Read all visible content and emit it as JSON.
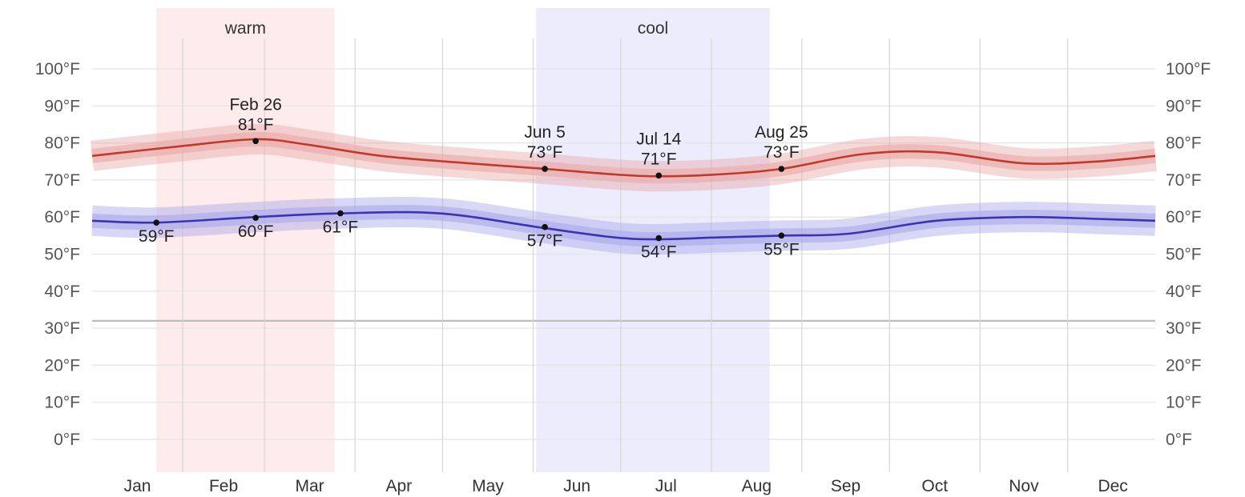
{
  "chart_data": {
    "type": "line",
    "title": "",
    "xlabel": "",
    "ylabel": "",
    "ylim": [
      -8,
      107
    ],
    "y_ticks": [
      "0°F",
      "10°F",
      "20°F",
      "30°F",
      "40°F",
      "50°F",
      "60°F",
      "70°F",
      "80°F",
      "90°F",
      "100°F"
    ],
    "y_tick_values": [
      0,
      10,
      20,
      30,
      40,
      50,
      60,
      70,
      80,
      90,
      100
    ],
    "freezing_line": 32,
    "months": [
      "Jan",
      "Feb",
      "Mar",
      "Apr",
      "May",
      "Jun",
      "Jul",
      "Aug",
      "Sep",
      "Oct",
      "Nov",
      "Dec"
    ],
    "x_unit": "day of year",
    "xlim": [
      1,
      365
    ],
    "seasons": [
      {
        "label": "warm",
        "start_day": 23,
        "end_day": 84,
        "color": "#fde4e4"
      },
      {
        "label": "cool",
        "start_day": 153,
        "end_day": 233,
        "color": "#e6e6fc"
      }
    ],
    "series": [
      {
        "color": "#c0392b",
        "band_color": "#e9a9a9",
        "x": [
          1,
          30,
          57,
          75,
          100,
          130,
          156,
          180,
          195,
          215,
          237,
          265,
          290,
          320,
          345,
          365
        ],
        "y": [
          76.5,
          79,
          81,
          79.5,
          76.5,
          74.5,
          73,
          71.5,
          71,
          71.5,
          73,
          77,
          77.5,
          74.5,
          75,
          76.5
        ]
      },
      {
        "color": "#3a34b5",
        "band_color": "#a9a9ea",
        "x": [
          1,
          23,
          57,
          86,
          120,
          156,
          180,
          195,
          215,
          237,
          260,
          290,
          320,
          345,
          365
        ],
        "y": [
          59,
          58.5,
          60,
          61,
          61,
          57,
          54.5,
          54,
          54.5,
          55,
          55.5,
          59,
          60,
          59.5,
          59
        ]
      }
    ],
    "annotations": [
      {
        "date": "Feb 26",
        "value": "81°F",
        "day": 57,
        "temp": 80.5,
        "position": "above"
      },
      {
        "date": "Jun 5",
        "value": "73°F",
        "day": 156,
        "temp": 73,
        "position": "above"
      },
      {
        "date": "Jul 14",
        "value": "71°F",
        "day": 195,
        "temp": 71.2,
        "position": "above"
      },
      {
        "date": "Aug 25",
        "value": "73°F",
        "day": 237,
        "temp": 73,
        "position": "above"
      },
      {
        "date": "",
        "value": "59°F",
        "day": 23,
        "temp": 58.5,
        "position": "below"
      },
      {
        "date": "",
        "value": "60°F",
        "day": 57,
        "temp": 59.8,
        "position": "below"
      },
      {
        "date": "",
        "value": "61°F",
        "day": 86,
        "temp": 61,
        "position": "below"
      },
      {
        "date": "",
        "value": "57°F",
        "day": 156,
        "temp": 57.3,
        "position": "below"
      },
      {
        "date": "",
        "value": "54°F",
        "day": 195,
        "temp": 54.3,
        "position": "below"
      },
      {
        "date": "",
        "value": "55°F",
        "day": 237,
        "temp": 55,
        "position": "below"
      }
    ]
  }
}
